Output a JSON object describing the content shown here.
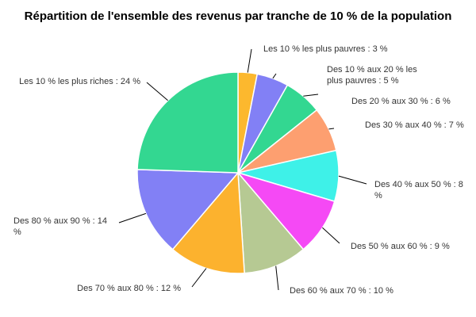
{
  "chart_data": {
    "type": "pie",
    "title": "Répartition de l'ensemble des revenus par tranche de 10 % de la population",
    "categories": [
      "Les 10 % les plus pauvres",
      "Des 10 % aux 20 % les plus pauvres",
      "Des 20 % aux 30 %",
      "Des 30 % aux 40 %",
      "Des 40 % aux 50 %",
      "Des 50 % aux 60 %",
      "Des 60 % aux 70 %",
      "Des 70 % aux 80 %",
      "Des 80 % aux 90 %",
      "Les 10 % les plus riches"
    ],
    "values": [
      3,
      5,
      6,
      7,
      8,
      9,
      10,
      12,
      14,
      24
    ],
    "labels": [
      [
        "Les 10 % les plus pauvres : 3 %"
      ],
      [
        "Des 10 % aux 20 % les",
        "plus pauvres : 5 %"
      ],
      [
        "Des 20 % aux 30 % : 6 %"
      ],
      [
        "Des 30 % aux 40 % : 7 %"
      ],
      [
        "Des 40 % aux 50 % : 8",
        "%"
      ],
      [
        "Des 50 % aux 60 % : 9 %"
      ],
      [
        "Des 60 % aux 70 % : 10 %"
      ],
      [
        "Des 70 % aux 80 % : 12 %"
      ],
      [
        "Des 80 % aux 90 % : 14",
        "%"
      ],
      [
        "Les 10 % les plus riches : 24 %"
      ]
    ],
    "colors": [
      "#fcb82e",
      "#8280f5",
      "#33d791",
      "#fd9f70",
      "#3ef1e8",
      "#f549f5",
      "#b6c993",
      "#fcb22e",
      "#8280f5",
      "#33d791"
    ],
    "legend": "none",
    "start_angle": "top",
    "direction": "clockwise"
  }
}
